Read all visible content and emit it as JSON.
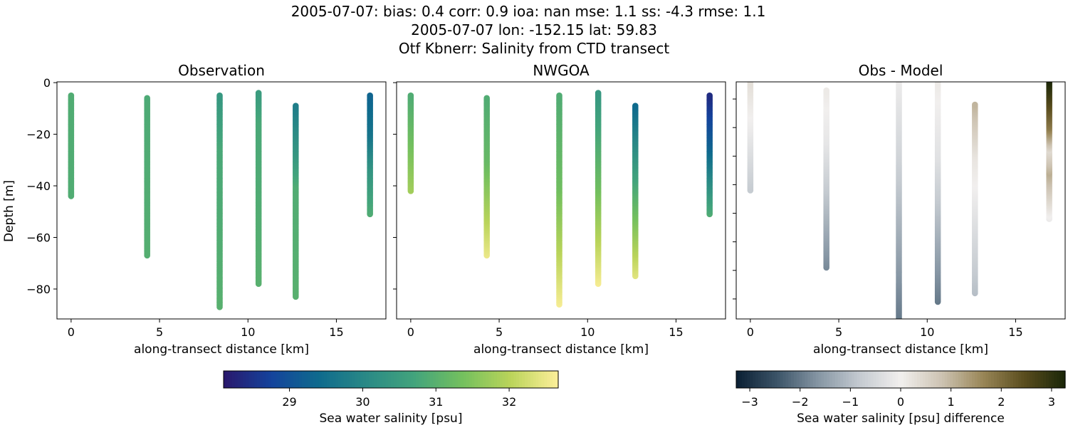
{
  "title_lines": [
    "2005-07-07: bias: 0.4  corr: 0.9  ioa: nan  mse: 1.1  ss: -4.3  rmse: 1.1",
    "2005-07-07 lon: -152.15 lat: 59.83",
    "Otf Kbnerr: Salinity from CTD transect"
  ],
  "colors": {
    "haline": [
      "#2a186c",
      "#14439c",
      "#0f6b8d",
      "#2a8a86",
      "#43a47c",
      "#74c05e",
      "#bad45a",
      "#fdef9a"
    ],
    "diff": [
      "#0a1f33",
      "#3c5468",
      "#8696a4",
      "#c4cad0",
      "#f1efee",
      "#cdc3b2",
      "#998657",
      "#5a4d1e",
      "#1a2608"
    ]
  },
  "chart_data": [
    {
      "type": "scatter",
      "title": "Observation",
      "xlabel": "along-transect distance [km]",
      "ylabel": "Depth [m]",
      "xlim": [
        -0.8,
        17.8
      ],
      "ylim": [
        -91.6,
        0.3
      ],
      "xticks": [
        0,
        5,
        10,
        15
      ],
      "yticks": [
        0,
        -20,
        -40,
        -60,
        -80
      ],
      "show_ytick_labels": true,
      "colormap": "haline",
      "clim": [
        28.1,
        32.67
      ],
      "profiles": [
        {
          "x": 0,
          "depth_top": -5,
          "depth_bottom": -44,
          "profile": [
            [
              -5,
              30.9
            ],
            [
              -44,
              30.9
            ]
          ]
        },
        {
          "x": 4.3,
          "depth_top": -6,
          "depth_bottom": -67,
          "profile": [
            [
              -6,
              30.85
            ],
            [
              -67,
              30.95
            ]
          ]
        },
        {
          "x": 8.4,
          "depth_top": -5,
          "depth_bottom": -87,
          "profile": [
            [
              -5,
              30.4
            ],
            [
              -25,
              30.8
            ],
            [
              -87,
              31.0
            ]
          ]
        },
        {
          "x": 10.6,
          "depth_top": -4,
          "depth_bottom": -78,
          "profile": [
            [
              -4,
              30.5
            ],
            [
              -15,
              30.8
            ],
            [
              -78,
              31.0
            ]
          ]
        },
        {
          "x": 12.7,
          "depth_top": -9,
          "depth_bottom": -83,
          "profile": [
            [
              -9,
              29.8
            ],
            [
              -28,
              30.4
            ],
            [
              -40,
              30.9
            ],
            [
              -83,
              31.0
            ]
          ]
        },
        {
          "x": 16.9,
          "depth_top": -5,
          "depth_bottom": -51,
          "profile": [
            [
              -5,
              29.3
            ],
            [
              -20,
              29.6
            ],
            [
              -33,
              30.3
            ],
            [
              -51,
              30.9
            ]
          ]
        }
      ]
    },
    {
      "type": "scatter",
      "title": "NWGOA",
      "xlabel": "along-transect distance [km]",
      "xlim": [
        -0.8,
        17.8
      ],
      "ylim": [
        -91.6,
        0.3
      ],
      "xticks": [
        0,
        5,
        10,
        15
      ],
      "yticks": [
        0,
        -20,
        -40,
        -60,
        -80
      ],
      "show_ytick_labels": false,
      "colormap": "haline",
      "clim": [
        28.1,
        32.67
      ],
      "profiles": [
        {
          "x": 0,
          "depth_top": -5,
          "depth_bottom": -42,
          "profile": [
            [
              -5,
              30.9
            ],
            [
              -42,
              31.8
            ]
          ]
        },
        {
          "x": 4.3,
          "depth_top": -6,
          "depth_bottom": -67,
          "profile": [
            [
              -6,
              30.9
            ],
            [
              -30,
              31.2
            ],
            [
              -67,
              32.5
            ]
          ]
        },
        {
          "x": 8.4,
          "depth_top": -5,
          "depth_bottom": -86,
          "profile": [
            [
              -5,
              30.9
            ],
            [
              -40,
              31.3
            ],
            [
              -86,
              32.6
            ]
          ]
        },
        {
          "x": 10.6,
          "depth_top": -4,
          "depth_bottom": -78,
          "profile": [
            [
              -4,
              30.4
            ],
            [
              -40,
              31.3
            ],
            [
              -78,
              32.6
            ]
          ]
        },
        {
          "x": 12.7,
          "depth_top": -9,
          "depth_bottom": -75,
          "profile": [
            [
              -9,
              29.4
            ],
            [
              -35,
              30.6
            ],
            [
              -75,
              32.4
            ]
          ]
        },
        {
          "x": 16.9,
          "depth_top": -5,
          "depth_bottom": -51,
          "profile": [
            [
              -5,
              28.4
            ],
            [
              -25,
              29.3
            ],
            [
              -51,
              30.9
            ]
          ]
        }
      ]
    },
    {
      "type": "scatter",
      "title": "Obs - Model",
      "xlabel": "along-transect distance [km]",
      "xlim": [
        -0.8,
        17.8
      ],
      "ylim": [
        -87,
        -4
      ],
      "xticks": [
        0,
        5,
        10,
        15
      ],
      "yticks": [
        -10,
        -20,
        -30,
        -40,
        -50,
        -60,
        -70,
        -80
      ],
      "show_ytick_labels": false,
      "colormap": "diff",
      "clim": [
        -3.27,
        3.27
      ],
      "profiles": [
        {
          "x": 0,
          "depth_top": -4,
          "depth_bottom": -42,
          "profile": [
            [
              -4,
              0.3
            ],
            [
              -20,
              -0.1
            ],
            [
              -42,
              -0.8
            ]
          ]
        },
        {
          "x": 4.3,
          "depth_top": -7,
          "depth_bottom": -69,
          "profile": [
            [
              -7,
              0.1
            ],
            [
              -25,
              -0.2
            ],
            [
              -69,
              -1.8
            ]
          ]
        },
        {
          "x": 8.4,
          "depth_top": -4,
          "depth_bottom": -87,
          "profile": [
            [
              -4,
              -0.1
            ],
            [
              -30,
              -0.6
            ],
            [
              -87,
              -2.0
            ]
          ]
        },
        {
          "x": 10.6,
          "depth_top": -4,
          "depth_bottom": -81,
          "profile": [
            [
              -4,
              0.1
            ],
            [
              -30,
              -0.3
            ],
            [
              -81,
              -2.0
            ]
          ]
        },
        {
          "x": 12.7,
          "depth_top": -12,
          "depth_bottom": -78,
          "profile": [
            [
              -12,
              1.0
            ],
            [
              -30,
              0.2
            ],
            [
              -40,
              0.0
            ],
            [
              -78,
              -1.0
            ]
          ]
        },
        {
          "x": 16.9,
          "depth_top": -4,
          "depth_bottom": -52,
          "profile": [
            [
              -4,
              3.2
            ],
            [
              -20,
              1.8
            ],
            [
              -28,
              0.4
            ],
            [
              -36,
              1.1
            ],
            [
              -47,
              0.3
            ],
            [
              -52,
              -0.1
            ]
          ]
        }
      ]
    }
  ],
  "colorbars": [
    {
      "colormap": "haline",
      "clim": [
        28.1,
        32.67
      ],
      "ticks": [
        29,
        30,
        31,
        32
      ],
      "label": "Sea water salinity [psu]"
    },
    {
      "colormap": "diff",
      "clim": [
        -3.27,
        3.27
      ],
      "ticks": [
        -3,
        -2,
        -1,
        0,
        1,
        2,
        3
      ],
      "label": "Sea water salinity [psu] difference"
    }
  ]
}
